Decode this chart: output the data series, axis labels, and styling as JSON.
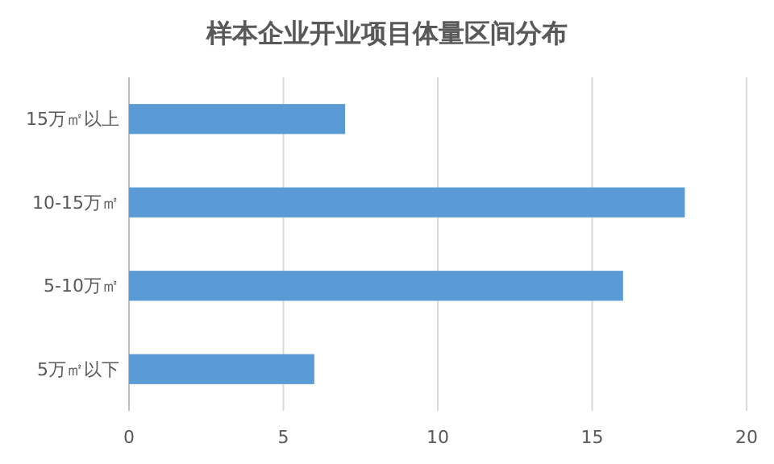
{
  "chart_data": {
    "type": "bar",
    "orientation": "horizontal",
    "title": "样本企业开业项目体量区间分布",
    "categories": [
      "15万㎡以上",
      "10-15万㎡",
      "5-10万㎡",
      "5万㎡以下"
    ],
    "values": [
      7,
      18,
      16,
      6
    ],
    "color": "#5b9bd5",
    "xlim": [
      0,
      20
    ],
    "xticks": [
      0,
      5,
      10,
      15,
      20
    ],
    "grid": "x"
  }
}
